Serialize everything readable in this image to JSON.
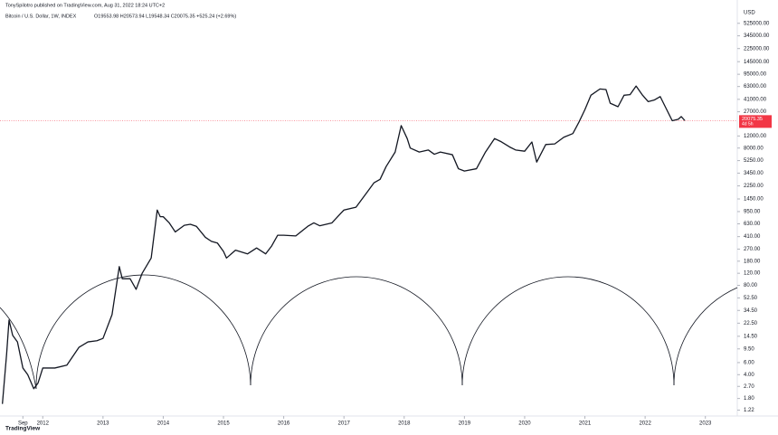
{
  "chart_data": {
    "type": "line",
    "attribution": "TonySpilotro published on TradingView.com, Aug 31, 2022 18:24 UTC+2",
    "title": "Bitcoin / U.S. Dollar, 1W, INDEX",
    "ohlc": "O19553.98 H20573.94 L19548.34 C20075.35 +525.24 (+2.69%)",
    "y_axis_label": "USD",
    "logo": "TradingView",
    "log_scale": true,
    "grid": false,
    "color": "#131722",
    "last_price": {
      "value": 20075.35,
      "label": "20075.35",
      "color": "#f23645"
    },
    "countdown": "4d 5h",
    "xlim": [
      2011.29,
      2023.53
    ],
    "xticks": [
      {
        "value": 2011.67,
        "label": "Sep"
      },
      2012,
      2013,
      2014,
      2015,
      2016,
      2017,
      2018,
      2019,
      2020,
      2021,
      2022,
      2023
    ],
    "ylim": [
      1,
      900000
    ],
    "yticks": [
      {
        "value": 525000,
        "label": "525000.00"
      },
      {
        "value": 345000,
        "label": "345000.00"
      },
      {
        "value": 225000,
        "label": "225000.00"
      },
      {
        "value": 145000,
        "label": "145000.00"
      },
      {
        "value": 95000,
        "label": "95000.00"
      },
      {
        "value": 63000,
        "label": "63000.00"
      },
      {
        "value": 41000,
        "label": "41000.00"
      },
      {
        "value": 27000,
        "label": "27000.00"
      },
      {
        "value": 12000,
        "label": "12000.00"
      },
      {
        "value": 8000,
        "label": "8000.00"
      },
      {
        "value": 5250,
        "label": "5250.00"
      },
      {
        "value": 3450,
        "label": "3450.00"
      },
      {
        "value": 2250,
        "label": "2250.00"
      },
      {
        "value": 1450,
        "label": "1450.00"
      },
      {
        "value": 950,
        "label": "950.00"
      },
      {
        "value": 630,
        "label": "630.00"
      },
      {
        "value": 410,
        "label": "410.00"
      },
      {
        "value": 270,
        "label": "270.00"
      },
      {
        "value": 180,
        "label": "180.00"
      },
      {
        "value": 120,
        "label": "120.00"
      },
      {
        "value": 80,
        "label": "80.00"
      },
      {
        "value": 52.5,
        "label": "52.50"
      },
      {
        "value": 34.5,
        "label": "34.50"
      },
      {
        "value": 22.5,
        "label": "22.50"
      },
      {
        "value": 14.5,
        "label": "14.50"
      },
      {
        "value": 9.5,
        "label": "9.50"
      },
      {
        "value": 6,
        "label": "6.00"
      },
      {
        "value": 4,
        "label": "4.00"
      },
      {
        "value": 2.7,
        "label": "2.70"
      },
      {
        "value": 1.8,
        "label": "1.80"
      },
      {
        "value": 1.22,
        "label": "1.22"
      }
    ],
    "x": [
      2011.33,
      2011.4,
      2011.44,
      2011.5,
      2011.58,
      2011.67,
      2011.75,
      2011.85,
      2011.92,
      2012.0,
      2012.2,
      2012.4,
      2012.6,
      2012.75,
      2012.9,
      2013.0,
      2013.15,
      2013.27,
      2013.32,
      2013.45,
      2013.55,
      2013.65,
      2013.8,
      2013.9,
      2013.95,
      2014.0,
      2014.1,
      2014.2,
      2014.35,
      2014.45,
      2014.55,
      2014.7,
      2014.8,
      2014.9,
      2015.0,
      2015.05,
      2015.2,
      2015.4,
      2015.55,
      2015.7,
      2015.8,
      2015.9,
      2016.0,
      2016.2,
      2016.4,
      2016.5,
      2016.6,
      2016.8,
      2016.95,
      2017.0,
      2017.2,
      2017.4,
      2017.5,
      2017.6,
      2017.7,
      2017.85,
      2017.95,
      2018.05,
      2018.1,
      2018.25,
      2018.4,
      2018.5,
      2018.6,
      2018.8,
      2018.9,
      2019.0,
      2019.2,
      2019.35,
      2019.5,
      2019.6,
      2019.75,
      2019.85,
      2020.0,
      2020.12,
      2020.2,
      2020.35,
      2020.5,
      2020.65,
      2020.8,
      2020.9,
      2021.0,
      2021.1,
      2021.25,
      2021.35,
      2021.42,
      2021.55,
      2021.65,
      2021.75,
      2021.85,
      2021.95,
      2022.05,
      2022.15,
      2022.25,
      2022.35,
      2022.45,
      2022.55,
      2022.6,
      2022.66
    ],
    "values": [
      1.5,
      8,
      25,
      15,
      12,
      5,
      4,
      2.5,
      3,
      5,
      5,
      5.5,
      10,
      12,
      12.5,
      13.5,
      30,
      150,
      100,
      100,
      70,
      120,
      200,
      1000,
      800,
      800,
      650,
      480,
      600,
      620,
      580,
      400,
      350,
      330,
      250,
      200,
      260,
      230,
      280,
      230,
      300,
      430,
      430,
      420,
      580,
      650,
      590,
      650,
      900,
      1000,
      1100,
      1900,
      2500,
      2800,
      4300,
      7000,
      17000,
      11000,
      8000,
      7000,
      7500,
      6500,
      7000,
      6400,
      4000,
      3700,
      4000,
      7000,
      11000,
      10000,
      8300,
      7500,
      7200,
      9800,
      5000,
      9000,
      9200,
      11500,
      13000,
      19000,
      29000,
      47000,
      58000,
      57000,
      36000,
      32000,
      47000,
      48000,
      64000,
      48000,
      38000,
      40000,
      45000,
      30000,
      20000,
      21000,
      23000,
      20075.35
    ]
  }
}
